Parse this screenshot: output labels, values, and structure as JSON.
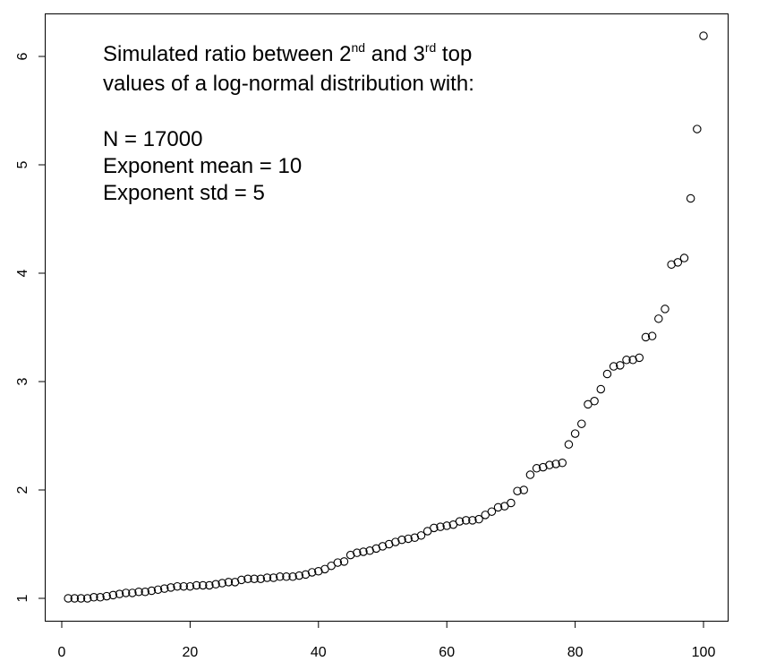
{
  "chart_data": {
    "type": "scatter",
    "title": "",
    "xlabel": "",
    "ylabel": "",
    "xlim": [
      0,
      100
    ],
    "ylim": [
      1,
      6.2
    ],
    "grid": false,
    "x_ticks": [
      "0",
      "20",
      "40",
      "60",
      "80",
      "100"
    ],
    "y_ticks": [
      "1",
      "2",
      "3",
      "4",
      "5",
      "6"
    ],
    "annotation": {
      "line1_a": "Simulated ratio between 2",
      "line1_sup1": "nd",
      "line1_b": " and 3",
      "line1_sup2": "rd",
      "line1_c": " top",
      "line2": "values of a log-normal distribution with:",
      "line3": "N = 17000",
      "line4": "Exponent mean = 10",
      "line5": "Exponent std = 5"
    },
    "x": [
      1,
      2,
      3,
      4,
      5,
      6,
      7,
      8,
      9,
      10,
      11,
      12,
      13,
      14,
      15,
      16,
      17,
      18,
      19,
      20,
      21,
      22,
      23,
      24,
      25,
      26,
      27,
      28,
      29,
      30,
      31,
      32,
      33,
      34,
      35,
      36,
      37,
      38,
      39,
      40,
      41,
      42,
      43,
      44,
      45,
      46,
      47,
      48,
      49,
      50,
      51,
      52,
      53,
      54,
      55,
      56,
      57,
      58,
      59,
      60,
      61,
      62,
      63,
      64,
      65,
      66,
      67,
      68,
      69,
      70,
      71,
      72,
      73,
      74,
      75,
      76,
      77,
      78,
      79,
      80,
      81,
      82,
      83,
      84,
      85,
      86,
      87,
      88,
      89,
      90,
      91,
      92,
      93,
      94,
      95,
      96,
      97,
      98,
      99,
      100
    ],
    "y": [
      1.0,
      1.0,
      1.0,
      1.0,
      1.01,
      1.01,
      1.02,
      1.03,
      1.04,
      1.05,
      1.05,
      1.06,
      1.06,
      1.07,
      1.08,
      1.09,
      1.1,
      1.11,
      1.11,
      1.11,
      1.12,
      1.12,
      1.12,
      1.13,
      1.14,
      1.15,
      1.15,
      1.17,
      1.18,
      1.18,
      1.18,
      1.19,
      1.19,
      1.2,
      1.2,
      1.2,
      1.21,
      1.22,
      1.24,
      1.25,
      1.27,
      1.3,
      1.33,
      1.34,
      1.4,
      1.42,
      1.43,
      1.44,
      1.46,
      1.48,
      1.5,
      1.52,
      1.54,
      1.55,
      1.56,
      1.58,
      1.62,
      1.65,
      1.66,
      1.67,
      1.68,
      1.71,
      1.72,
      1.72,
      1.73,
      1.77,
      1.8,
      1.84,
      1.85,
      1.88,
      1.99,
      2.0,
      2.14,
      2.2,
      2.21,
      2.23,
      2.24,
      2.25,
      2.42,
      2.52,
      2.61,
      2.79,
      2.82,
      2.93,
      3.07,
      3.14,
      3.15,
      3.2,
      3.2,
      3.22,
      3.41,
      3.42,
      3.58,
      3.67,
      4.08,
      4.1,
      4.14,
      4.69,
      5.33,
      6.19
    ]
  }
}
